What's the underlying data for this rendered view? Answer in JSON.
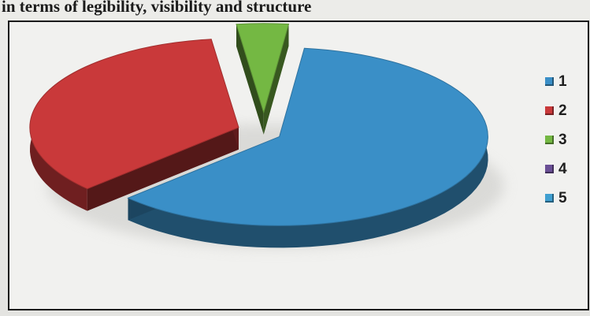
{
  "heading": "in terms of legibility, visibility and structure",
  "chart_data": {
    "type": "pie",
    "title": "",
    "categories": [
      "1",
      "2",
      "3",
      "4",
      "5"
    ],
    "values": [
      61,
      35,
      4,
      0,
      0
    ],
    "colors": {
      "1": "#3a8fc7",
      "2": "#c9393a",
      "3": "#74b843",
      "4": "#6a4f95",
      "5": "#3f9fd0"
    },
    "style": "3d exploded",
    "legend": {
      "placement": "right",
      "entries": [
        "1",
        "2",
        "3",
        "4",
        "5"
      ]
    }
  }
}
